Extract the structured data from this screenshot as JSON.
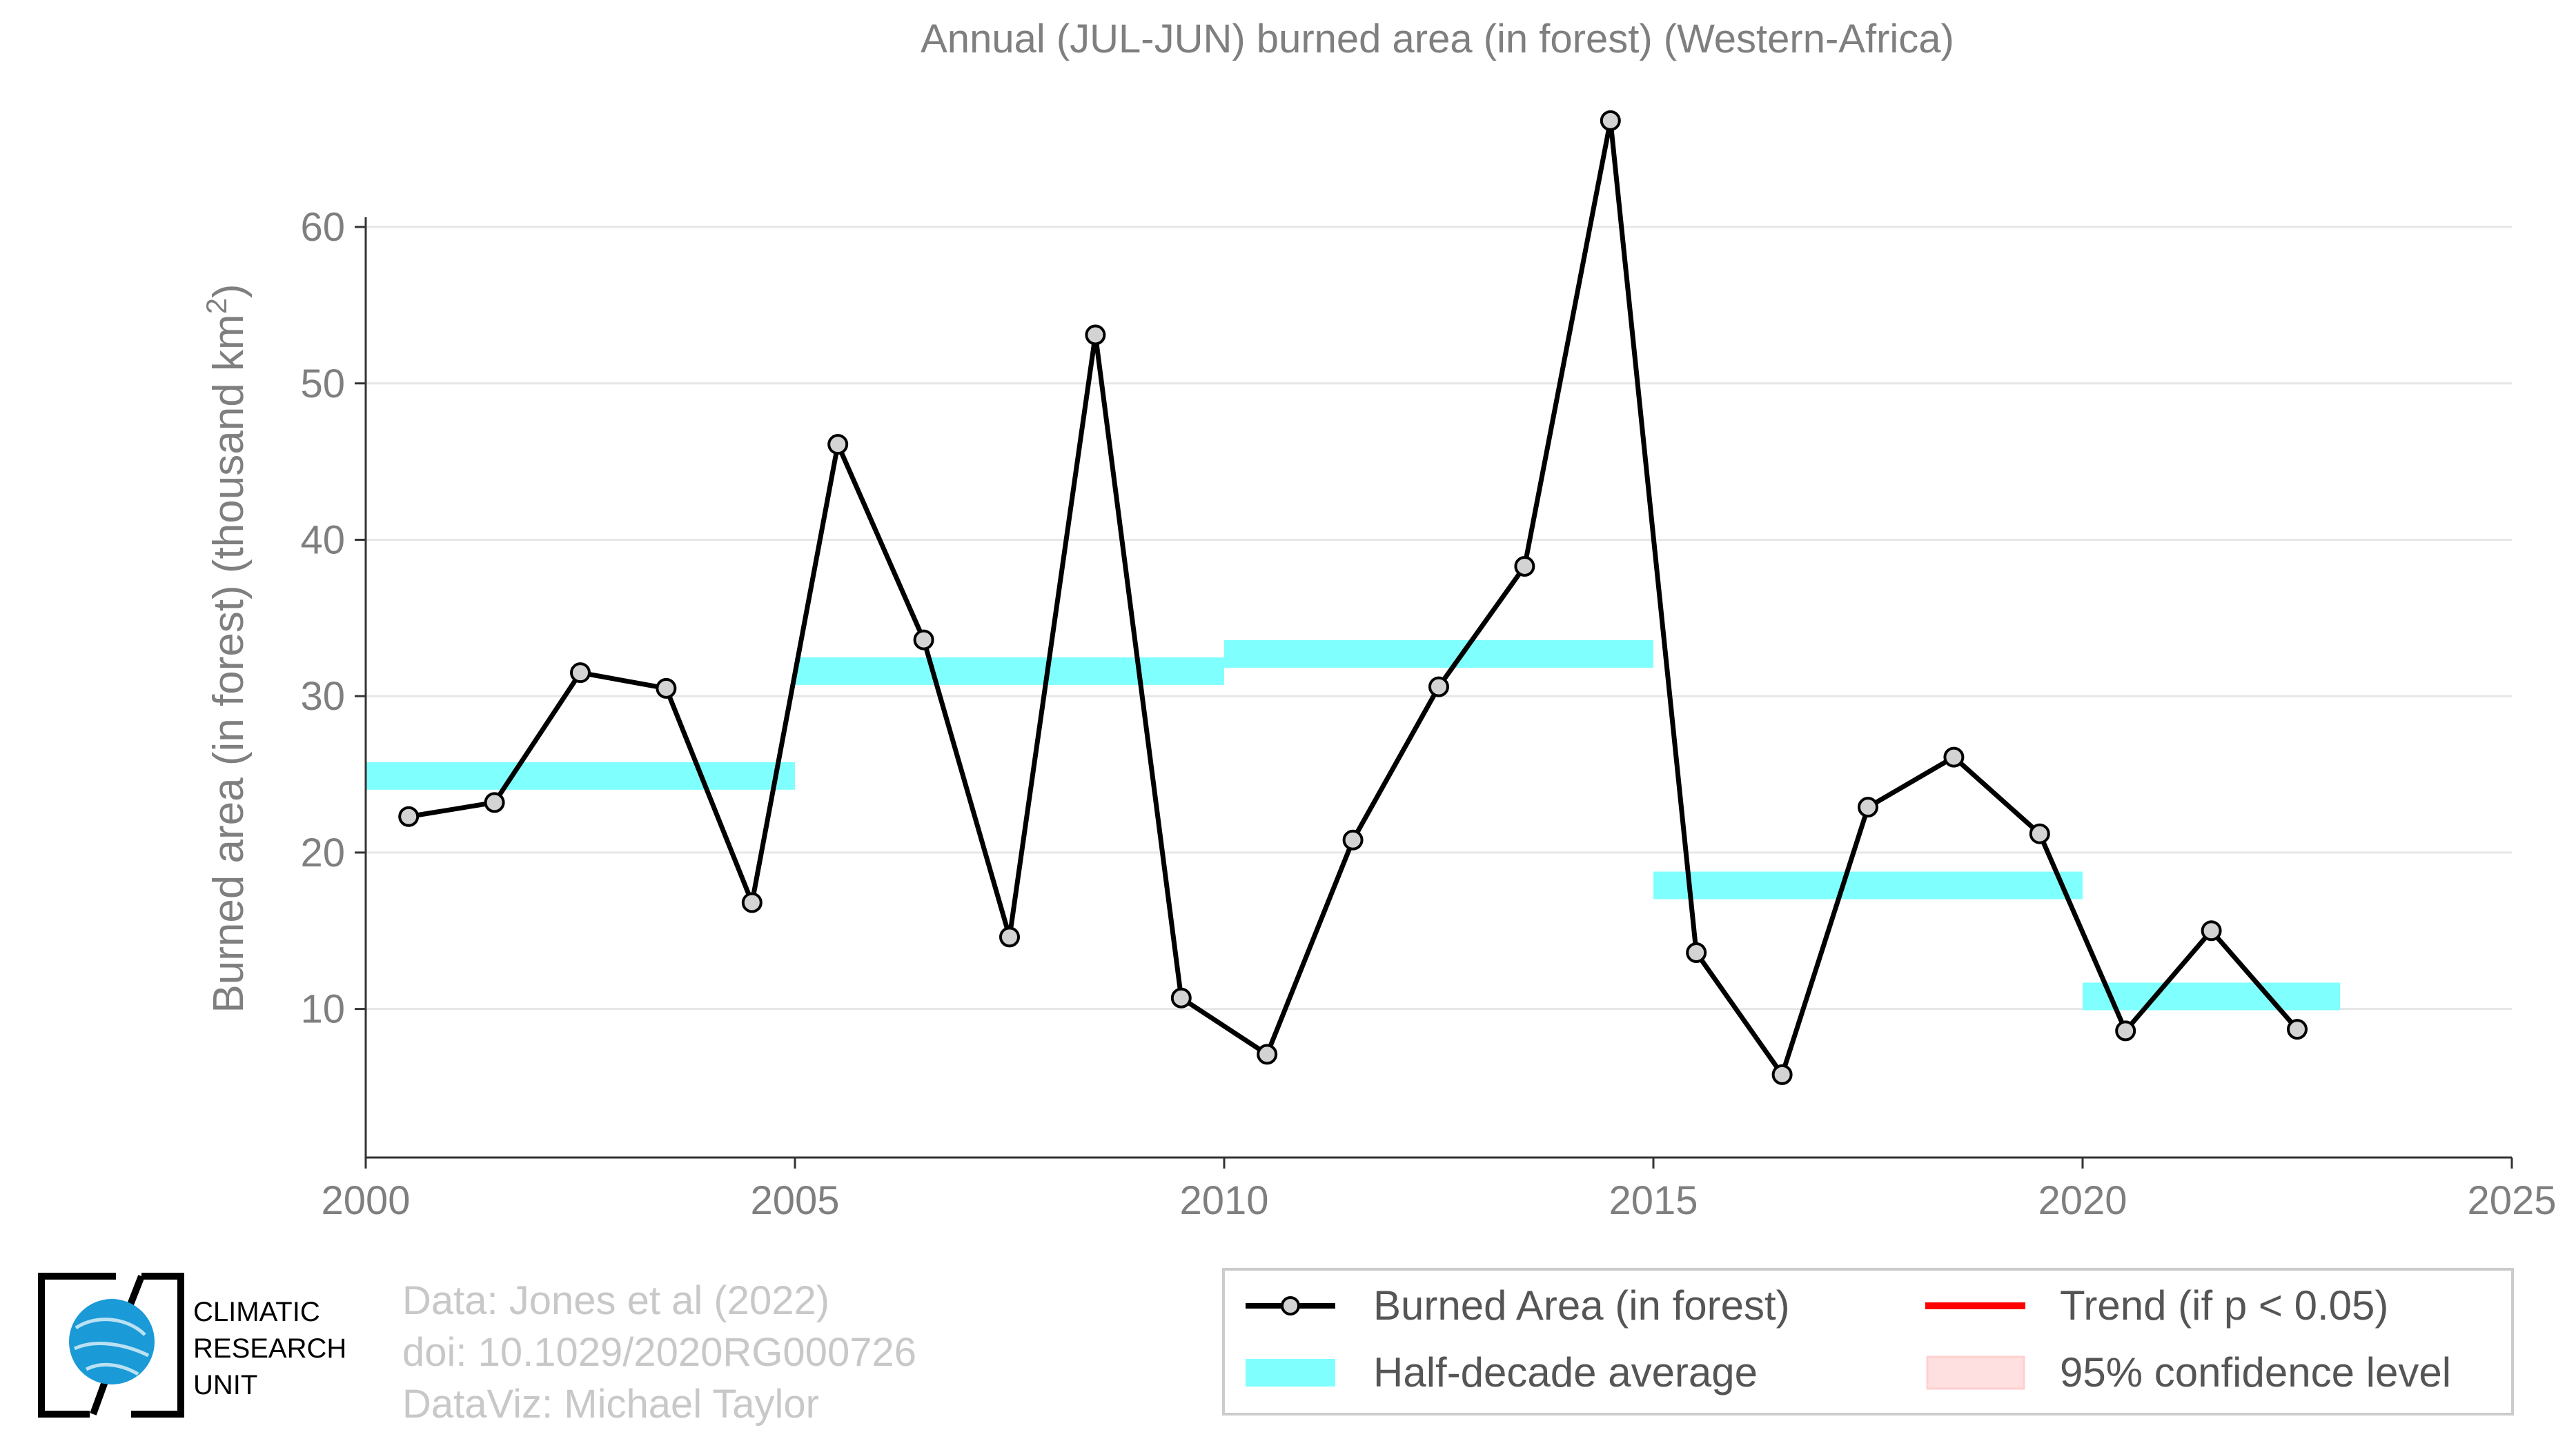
{
  "chart_data": {
    "type": "line",
    "title": "Annual (JUL-JUN) burned area (in forest) (Western-Africa)",
    "xlabel": "",
    "ylabel": "Burned area (in forest) (thousand km",
    "ylabel_sup": "2",
    "ylabel_close": ")",
    "xlim": [
      2000,
      2025
    ],
    "ylim": [
      0.5,
      69
    ],
    "x_ticks": [
      2000,
      2005,
      2010,
      2015,
      2020,
      2025
    ],
    "x_tick_labels": [
      "2000",
      "2005",
      "2010",
      "2015",
      "2020",
      "2025"
    ],
    "y_ticks": [
      10,
      20,
      30,
      40,
      50,
      60
    ],
    "y_tick_labels": [
      "10",
      "20",
      "30",
      "40",
      "50",
      "60"
    ],
    "grid": "horizontal",
    "legend_position": "bottom-right",
    "series": [
      {
        "name": "Burned Area (in forest)",
        "color": "#000000",
        "marker_fill": "#d3d3d3",
        "x": [
          2000.5,
          2001.5,
          2002.5,
          2003.5,
          2004.5,
          2005.5,
          2006.5,
          2007.5,
          2008.5,
          2009.5,
          2010.5,
          2011.5,
          2012.5,
          2013.5,
          2014.5,
          2015.5,
          2016.5,
          2017.5,
          2018.5,
          2019.5,
          2020.5,
          2021.5,
          2022.5
        ],
        "y": [
          22.3,
          23.2,
          31.5,
          30.5,
          16.8,
          46.1,
          33.6,
          14.6,
          53.1,
          10.7,
          7.1,
          20.8,
          30.6,
          38.3,
          66.8,
          13.6,
          5.8,
          22.9,
          26.1,
          21.2,
          8.6,
          15.0,
          8.7
        ]
      }
    ],
    "half_decade_average": {
      "name": "Half-decade average",
      "color": "#80ffff",
      "segments": [
        {
          "x_start": 2000,
          "x_end": 2005,
          "value": 24.9
        },
        {
          "x_start": 2005,
          "x_end": 2010,
          "value": 31.6
        },
        {
          "x_start": 2010,
          "x_end": 2015,
          "value": 32.7
        },
        {
          "x_start": 2015,
          "x_end": 2020,
          "value": 17.9
        },
        {
          "x_start": 2020,
          "x_end": 2023,
          "value": 10.8
        }
      ]
    },
    "legend": [
      {
        "label": "Burned Area (in forest)",
        "kind": "line-marker",
        "color": "#000000"
      },
      {
        "label": "Trend (if p < 0.05)",
        "kind": "line",
        "color": "#ff0000"
      },
      {
        "label": "Half-decade average",
        "kind": "band",
        "color": "#80ffff"
      },
      {
        "label": "95% confidence level",
        "kind": "patch",
        "color": "#ffe0e0"
      }
    ]
  },
  "logo": {
    "line1": "CLIMATIC",
    "line2": "RESEARCH",
    "line3": "UNIT",
    "globe_color": "#1a9ad6"
  },
  "credits": {
    "line1": "Data: Jones et al (2022)",
    "line2": "doi: 10.1029/2020RG000726",
    "line3": "DataViz: Michael Taylor"
  }
}
